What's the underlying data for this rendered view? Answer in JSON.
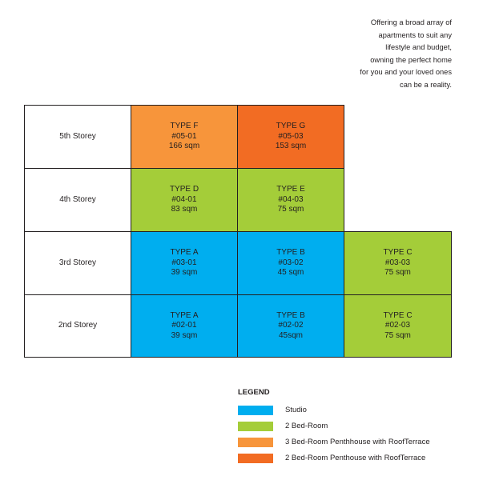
{
  "intro": {
    "lines": [
      "Offering a broad array of",
      "apartments to suit any",
      "lifestyle and budget,",
      "owning the perfect home",
      "for you and your loved ones",
      "can be a reality."
    ]
  },
  "floors": [
    {
      "label": "5th Storey",
      "units": [
        {
          "type": "TYPE F",
          "unit": "#05-01",
          "area": "166 sqm",
          "category": "3bph"
        },
        {
          "type": "TYPE G",
          "unit": "#05-03",
          "area": "153 sqm",
          "category": "2bph"
        }
      ]
    },
    {
      "label": "4th Storey",
      "units": [
        {
          "type": "TYPE D",
          "unit": "#04-01",
          "area": "83 sqm",
          "category": "2bed"
        },
        {
          "type": "TYPE E",
          "unit": "#04-03",
          "area": "75 sqm",
          "category": "2bed"
        }
      ]
    },
    {
      "label": "3rd Storey",
      "units": [
        {
          "type": "TYPE A",
          "unit": "#03-01",
          "area": "39 sqm",
          "category": "studio"
        },
        {
          "type": "TYPE B",
          "unit": "#03-02",
          "area": "45 sqm",
          "category": "studio"
        },
        {
          "type": "TYPE C",
          "unit": "#03-03",
          "area": "75 sqm",
          "category": "2bed"
        }
      ]
    },
    {
      "label": "2nd Storey",
      "units": [
        {
          "type": "TYPE A",
          "unit": "#02-01",
          "area": "39 sqm",
          "category": "studio"
        },
        {
          "type": "TYPE B",
          "unit": "#02-02",
          "area": "45sqm",
          "category": "studio"
        },
        {
          "type": "TYPE C",
          "unit": "#02-03",
          "area": "75 sqm",
          "category": "2bed"
        }
      ]
    }
  ],
  "legend": {
    "title": "LEGEND",
    "items": [
      {
        "label": "Studio",
        "category": "studio",
        "color": "#00aeef"
      },
      {
        "label": "2 Bed-Room",
        "category": "2bed",
        "color": "#a4cd39"
      },
      {
        "label": "3 Bed-Room Penthhouse with RoofTerrace",
        "category": "3bph",
        "color": "#f7953b"
      },
      {
        "label": "2 Bed-Room Penthouse with RoofTerrace",
        "category": "2bph",
        "color": "#f26c23"
      }
    ]
  }
}
